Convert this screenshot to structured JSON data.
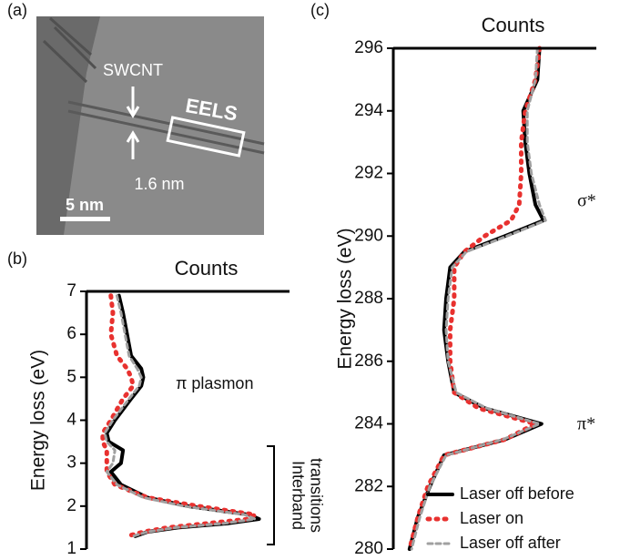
{
  "image_panel": {
    "label": "(a)",
    "tube": "SWCNT",
    "region": "EELS",
    "diameter": "1.6 nm",
    "scalebar": "5 nm"
  },
  "chart_data": [
    {
      "type": "line",
      "label": "(b)",
      "title": "Counts",
      "ylabel": "Energy loss (eV)",
      "annotations": [
        "π plasmon",
        "Interband",
        "transitions"
      ],
      "x": [
        6.9,
        6.5,
        6,
        5.5,
        5.2,
        5,
        4.8,
        4.5,
        4,
        3.7,
        3.5,
        3.3,
        3,
        2.8,
        2.5,
        2.2,
        2,
        1.8,
        1.7,
        1.6,
        1.5,
        1.4,
        1.3
      ],
      "series": [
        {
          "color": "#000000",
          "style": "solid",
          "values": [
            16,
            18,
            20,
            22,
            27,
            28,
            27,
            22,
            14,
            10,
            11,
            18,
            17,
            12,
            17,
            30,
            50,
            80,
            85,
            70,
            45,
            30,
            24
          ]
        },
        {
          "color": "#e8312f",
          "style": "dotted",
          "values": [
            12,
            13,
            12,
            15,
            20,
            22,
            23,
            18,
            12,
            8,
            8,
            10,
            10,
            10,
            14,
            30,
            55,
            83,
            80,
            60,
            40,
            28,
            20
          ]
        },
        {
          "color": "#a0a0a0",
          "style": "dashed",
          "values": [
            15,
            17,
            19,
            21,
            25,
            27,
            26,
            21,
            13,
            9,
            10,
            14,
            13,
            10,
            15,
            28,
            48,
            78,
            83,
            68,
            44,
            30,
            23
          ]
        }
      ],
      "xlim": [
        0,
        100
      ],
      "ylim": [
        1,
        7
      ],
      "yticks": [
        1,
        2,
        3,
        4,
        5,
        6,
        7
      ]
    },
    {
      "type": "line",
      "label": "(c)",
      "title": "Counts",
      "ylabel": "Energy loss (eV)",
      "annotations": [
        "σ*",
        "π*"
      ],
      "x": [
        296,
        295,
        294,
        293,
        292,
        291,
        290.5,
        290,
        289.5,
        289,
        288,
        287,
        286,
        285,
        284.5,
        284,
        283.5,
        283,
        282,
        281,
        280
      ],
      "series": [
        {
          "name": "Laser off before",
          "color": "#000000",
          "style": "solid",
          "values": [
            72,
            71,
            64,
            65,
            67,
            70,
            74,
            55,
            35,
            28,
            26,
            25,
            27,
            30,
            45,
            73,
            55,
            25,
            18,
            12,
            8
          ]
        },
        {
          "name": "Laser on",
          "color": "#e8312f",
          "style": "dotted",
          "values": [
            72,
            70,
            65,
            63,
            63,
            62,
            58,
            45,
            35,
            30,
            30,
            28,
            28,
            30,
            42,
            70,
            55,
            25,
            17,
            12,
            8
          ]
        },
        {
          "name": "Laser off after",
          "color": "#a0a0a0",
          "style": "dashed",
          "values": [
            71,
            70,
            66,
            66,
            68,
            72,
            75,
            56,
            36,
            29,
            27,
            26,
            27,
            31,
            46,
            72,
            54,
            26,
            18,
            13,
            9
          ]
        }
      ],
      "xlim": [
        0,
        100
      ],
      "ylim": [
        280,
        296
      ],
      "yticks": [
        280,
        282,
        284,
        286,
        288,
        290,
        292,
        294,
        296
      ],
      "legend": "lower right"
    }
  ]
}
